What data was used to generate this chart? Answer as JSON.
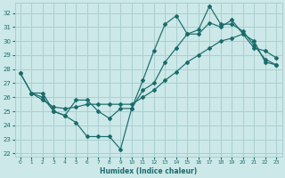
{
  "xlabel": "Humidex (Indice chaleur)",
  "xlim": [
    -0.5,
    23.5
  ],
  "ylim": [
    21.8,
    32.7
  ],
  "yticks": [
    22,
    23,
    24,
    25,
    26,
    27,
    28,
    29,
    30,
    31,
    32
  ],
  "xticks": [
    0,
    1,
    2,
    3,
    4,
    5,
    6,
    7,
    8,
    9,
    10,
    11,
    12,
    13,
    14,
    15,
    16,
    17,
    18,
    19,
    20,
    21,
    22,
    23
  ],
  "background_color": "#cce8e8",
  "grid_color": "#aacfcf",
  "line_color": "#1a6b6b",
  "line1_x": [
    0,
    1,
    2,
    3,
    4,
    5,
    6,
    7,
    8,
    9,
    10,
    11,
    12,
    13,
    14,
    15,
    16,
    17,
    18,
    19,
    20,
    21,
    22,
    23
  ],
  "line1_y": [
    27.7,
    26.3,
    26.3,
    25.0,
    24.7,
    24.2,
    23.2,
    23.2,
    23.2,
    22.3,
    25.2,
    27.2,
    29.3,
    31.2,
    31.8,
    30.5,
    30.8,
    32.5,
    31.2,
    31.2,
    30.7,
    29.7,
    28.7,
    28.3
  ],
  "line2_x": [
    0,
    1,
    2,
    3,
    4,
    5,
    6,
    7,
    8,
    9,
    10,
    11,
    12,
    13,
    14,
    15,
    16,
    17,
    18,
    19,
    20,
    21,
    22,
    23
  ],
  "line2_y": [
    27.7,
    26.3,
    25.8,
    25.3,
    25.2,
    25.3,
    25.5,
    25.5,
    25.5,
    25.5,
    25.5,
    26.0,
    26.5,
    27.2,
    27.8,
    28.5,
    29.0,
    29.5,
    30.0,
    30.2,
    30.5,
    30.0,
    28.5,
    28.3
  ],
  "line3_x": [
    1,
    2,
    3,
    4,
    5,
    6,
    7,
    8,
    9,
    10,
    11,
    12,
    13,
    14,
    15,
    16,
    17,
    18,
    19,
    20,
    21,
    22,
    23
  ],
  "line3_y": [
    26.3,
    26.0,
    25.0,
    24.7,
    25.8,
    25.8,
    25.0,
    24.5,
    25.2,
    25.2,
    26.5,
    27.0,
    28.5,
    29.5,
    30.5,
    30.5,
    31.3,
    31.0,
    31.5,
    30.5,
    29.5,
    29.3,
    28.8
  ]
}
